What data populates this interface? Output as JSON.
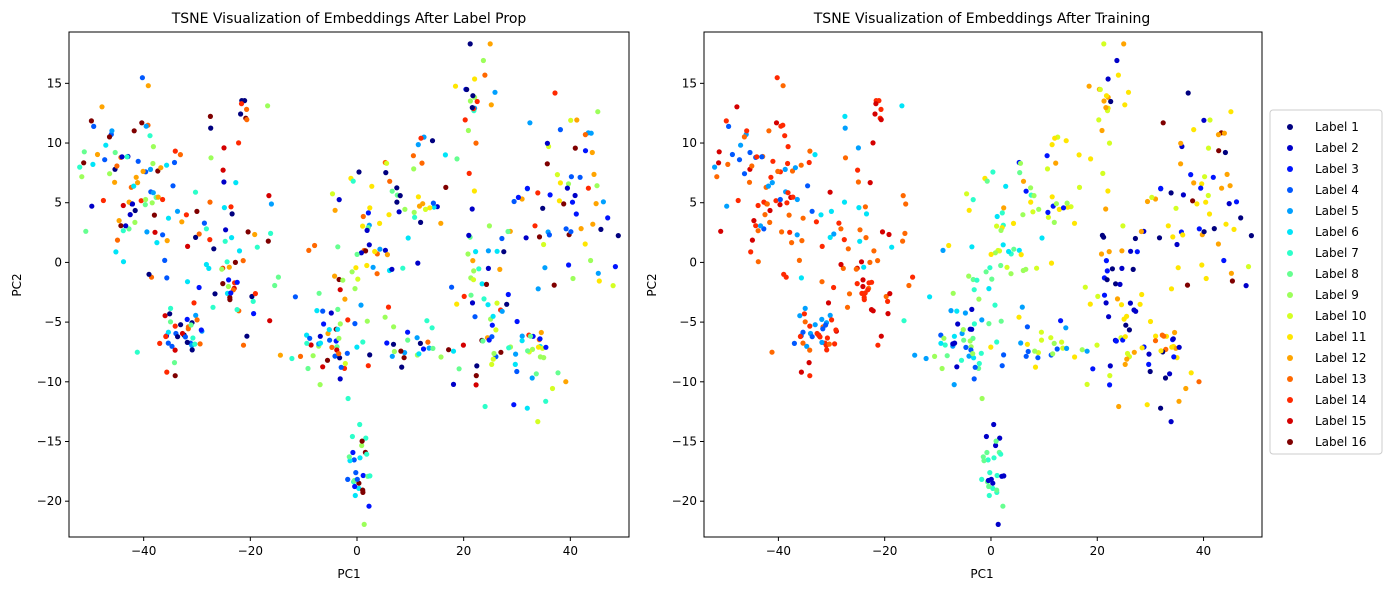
{
  "chart_data": [
    {
      "type": "scatter",
      "title": "TSNE Visualization of Embeddings After Label Prop",
      "xlabel": "PC1",
      "ylabel": "PC2",
      "xlim": [
        -54,
        51
      ],
      "ylim": [
        -23,
        19.3
      ],
      "xticks": [
        -40,
        -20,
        0,
        20,
        40
      ],
      "yticks": [
        -20,
        -15,
        -10,
        -5,
        0,
        5,
        10,
        15
      ],
      "grid": false,
      "legend": "none",
      "clusters": [
        {
          "region": "left-top",
          "center": [
            -43,
            7.5
          ],
          "spread": [
            4.5,
            3.5
          ],
          "count": 70,
          "mix": [
            1,
            2,
            4,
            5,
            6,
            7,
            8,
            9,
            12,
            13,
            14,
            16
          ]
        },
        {
          "region": "center-left",
          "center": [
            -30,
            3.5
          ],
          "spread": [
            8,
            4
          ],
          "count": 55,
          "mix": [
            1,
            2,
            4,
            5,
            6,
            7,
            9,
            12,
            13,
            14,
            15,
            16
          ]
        },
        {
          "region": "upper-center",
          "center": [
            -21,
            12.8
          ],
          "spread": [
            0.8,
            0.8
          ],
          "count": 8,
          "mix": [
            1,
            13,
            14,
            15,
            16
          ]
        },
        {
          "region": "lower-left",
          "center": [
            -33,
            -6
          ],
          "spread": [
            3,
            1.5
          ],
          "count": 40,
          "mix": [
            1,
            3,
            4,
            5,
            6,
            7,
            8,
            13,
            14,
            15,
            16
          ]
        },
        {
          "region": "mid-left",
          "center": [
            -23,
            -2.5
          ],
          "spread": [
            3,
            2
          ],
          "count": 30,
          "mix": [
            1,
            3,
            6,
            7,
            8,
            9,
            13,
            14,
            15,
            16
          ]
        },
        {
          "region": "center",
          "center": [
            -5,
            -6
          ],
          "spread": [
            5,
            2.5
          ],
          "count": 55,
          "mix": [
            1,
            2,
            3,
            4,
            5,
            6,
            7,
            8,
            9,
            10,
            12,
            13,
            14,
            15,
            16
          ]
        },
        {
          "region": "center-upper",
          "center": [
            2,
            2
          ],
          "spread": [
            4,
            3
          ],
          "count": 40,
          "mix": [
            1,
            2,
            3,
            5,
            6,
            7,
            8,
            9,
            10,
            11,
            12,
            13,
            14,
            16
          ]
        },
        {
          "region": "bottom",
          "center": [
            0,
            -17.5
          ],
          "spread": [
            1.2,
            1.8
          ],
          "count": 28,
          "mix": [
            3,
            4,
            6,
            7,
            8,
            9,
            16
          ]
        },
        {
          "region": "center-right",
          "center": [
            10,
            -7
          ],
          "spread": [
            4,
            1.2
          ],
          "count": 25,
          "mix": [
            1,
            3,
            5,
            6,
            7,
            8,
            9,
            10,
            13,
            14,
            16
          ]
        },
        {
          "region": "upper-right",
          "center": [
            12,
            6.5
          ],
          "spread": [
            4,
            2.5
          ],
          "count": 35,
          "mix": [
            1,
            2,
            3,
            4,
            5,
            6,
            7,
            8,
            9,
            10,
            11,
            12,
            13,
            14,
            16
          ]
        },
        {
          "region": "top-right",
          "center": [
            22,
            14.5
          ],
          "spread": [
            1.5,
            2.2
          ],
          "count": 20,
          "mix": [
            1,
            3,
            5,
            7,
            9,
            10,
            11,
            12,
            13,
            14
          ]
        },
        {
          "region": "right-mid",
          "center": [
            24,
            -3
          ],
          "spread": [
            3,
            4.5
          ],
          "count": 60,
          "mix": [
            1,
            2,
            3,
            4,
            5,
            6,
            7,
            8,
            9,
            10,
            11,
            12,
            13,
            14,
            15,
            16
          ]
        },
        {
          "region": "far-right",
          "center": [
            40,
            4.5
          ],
          "spread": [
            5,
            4
          ],
          "count": 65,
          "mix": [
            1,
            2,
            3,
            4,
            5,
            9,
            10,
            11,
            12,
            13,
            14,
            16
          ]
        },
        {
          "region": "right-low",
          "center": [
            33,
            -8
          ],
          "spread": [
            2.5,
            2.5
          ],
          "count": 30,
          "mix": [
            1,
            3,
            4,
            5,
            6,
            7,
            8,
            9,
            10,
            11,
            12,
            13,
            14
          ]
        }
      ]
    },
    {
      "type": "scatter",
      "title": "TSNE Visualization of Embeddings After Training",
      "xlabel": "PC1",
      "ylabel": "PC2",
      "xlim": [
        -54,
        51
      ],
      "ylim": [
        -23,
        19.3
      ],
      "xticks": [
        -40,
        -20,
        0,
        20,
        40
      ],
      "yticks": [
        -20,
        -15,
        -10,
        -5,
        0,
        5,
        10,
        15
      ],
      "grid": false,
      "legend": "right",
      "clusters": [
        {
          "region": "left-top",
          "center": [
            -43,
            7.5
          ],
          "spread": [
            4.5,
            3.5
          ],
          "count": 70,
          "mix": [
            4,
            5,
            13,
            14,
            15
          ]
        },
        {
          "region": "center-left",
          "center": [
            -30,
            3.5
          ],
          "spread": [
            8,
            4
          ],
          "count": 55,
          "mix": [
            13,
            14,
            15,
            5,
            6
          ]
        },
        {
          "region": "upper-center",
          "center": [
            -21,
            12.8
          ],
          "spread": [
            0.8,
            0.8
          ],
          "count": 8,
          "mix": [
            14,
            15
          ]
        },
        {
          "region": "lower-left",
          "center": [
            -33,
            -6
          ],
          "spread": [
            3,
            1.5
          ],
          "count": 40,
          "mix": [
            4,
            5,
            14,
            15,
            13
          ]
        },
        {
          "region": "mid-left",
          "center": [
            -23,
            -2.5
          ],
          "spread": [
            3,
            2
          ],
          "count": 30,
          "mix": [
            13,
            14,
            15
          ]
        },
        {
          "region": "center",
          "center": [
            -5,
            -6
          ],
          "spread": [
            5,
            2.5
          ],
          "count": 55,
          "mix": [
            5,
            6,
            7,
            8,
            9,
            4,
            2
          ]
        },
        {
          "region": "center-upper",
          "center": [
            2,
            2
          ],
          "spread": [
            4,
            3
          ],
          "count": 40,
          "mix": [
            6,
            7,
            8,
            9,
            10,
            11
          ]
        },
        {
          "region": "bottom",
          "center": [
            0,
            -17.5
          ],
          "spread": [
            1.2,
            1.8
          ],
          "count": 28,
          "mix": [
            7,
            8,
            2
          ]
        },
        {
          "region": "center-right",
          "center": [
            10,
            -7
          ],
          "spread": [
            4,
            1.2
          ],
          "count": 25,
          "mix": [
            9,
            10,
            11,
            4,
            5
          ]
        },
        {
          "region": "upper-right",
          "center": [
            12,
            6.5
          ],
          "spread": [
            4,
            2.5
          ],
          "count": 35,
          "mix": [
            9,
            10,
            11,
            12,
            3
          ]
        },
        {
          "region": "top-right",
          "center": [
            22,
            14.5
          ],
          "spread": [
            1.5,
            2.2
          ],
          "count": 20,
          "mix": [
            10,
            11,
            12,
            1,
            2
          ]
        },
        {
          "region": "right-mid",
          "center": [
            24,
            -3
          ],
          "spread": [
            3,
            4.5
          ],
          "count": 60,
          "mix": [
            10,
            11,
            12,
            1,
            2,
            3
          ]
        },
        {
          "region": "far-right",
          "center": [
            40,
            4.5
          ],
          "spread": [
            5,
            4
          ],
          "count": 65,
          "mix": [
            10,
            11,
            12,
            1,
            2,
            3,
            16
          ]
        },
        {
          "region": "right-low",
          "center": [
            33,
            -8
          ],
          "spread": [
            2.5,
            2.5
          ],
          "count": 30,
          "mix": [
            1,
            2,
            3,
            11,
            12,
            13
          ]
        }
      ]
    }
  ],
  "legend": {
    "items": [
      {
        "label": "Label 1",
        "color": "#00007f"
      },
      {
        "label": "Label 2",
        "color": "#0000c8"
      },
      {
        "label": "Label 3",
        "color": "#0014ff"
      },
      {
        "label": "Label 4",
        "color": "#0058ff"
      },
      {
        "label": "Label 5",
        "color": "#00a0ff"
      },
      {
        "label": "Label 6",
        "color": "#00e4f8"
      },
      {
        "label": "Label 7",
        "color": "#2cffca"
      },
      {
        "label": "Label 8",
        "color": "#66ff90"
      },
      {
        "label": "Label 9",
        "color": "#9cff5a"
      },
      {
        "label": "Label 10",
        "color": "#d4ff23"
      },
      {
        "label": "Label 11",
        "color": "#ffe600"
      },
      {
        "label": "Label 12",
        "color": "#ffa400"
      },
      {
        "label": "Label 13",
        "color": "#ff6800"
      },
      {
        "label": "Label 14",
        "color": "#ff2900"
      },
      {
        "label": "Label 15",
        "color": "#d40000"
      },
      {
        "label": "Label 16",
        "color": "#7f0000"
      }
    ]
  }
}
